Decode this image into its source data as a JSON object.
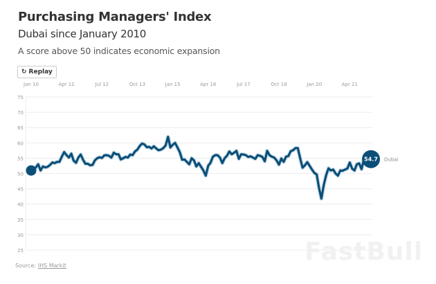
{
  "header": {
    "title": "Purchasing Managers' Index",
    "subtitle": "Dubai since January 2010",
    "description": "A score above 50 indicates economic expansion"
  },
  "controls": {
    "replay_label": "Replay",
    "replay_icon": "replay-icon"
  },
  "source": {
    "label": "Source:",
    "link": "IHS Markit"
  },
  "watermark": "FastBull",
  "chart_data": {
    "type": "line",
    "title": "Purchasing Managers' Index",
    "subtitle": "Dubai since January 2010",
    "x_start": "Jan 2010",
    "x_frequency": "monthly",
    "xticks": [
      {
        "label": "Jan 10",
        "month": 0
      },
      {
        "label": "Apr 11",
        "month": 15
      },
      {
        "label": "Jul 12",
        "month": 30
      },
      {
        "label": "Oct 13",
        "month": 45
      },
      {
        "label": "Jan 15",
        "month": 60
      },
      {
        "label": "Apr 16",
        "month": 75
      },
      {
        "label": "Jul 17",
        "month": 90
      },
      {
        "label": "Oct 18",
        "month": 105
      },
      {
        "label": "Jan 20",
        "month": 120
      },
      {
        "label": "Apr 21",
        "month": 135
      }
    ],
    "ylim": [
      25,
      75
    ],
    "yticks": [
      75,
      70,
      65,
      60,
      55,
      50,
      45,
      40,
      35,
      30,
      25
    ],
    "grid": true,
    "color": "#0b4f78",
    "series": [
      {
        "name": "Dubai",
        "last_label": "54.7",
        "values": [
          51,
          51.5,
          52,
          53,
          51,
          52.3,
          52,
          52.2,
          52.8,
          53.6,
          53.4,
          53.8,
          53.8,
          55.5,
          57,
          56,
          55.2,
          56.5,
          54.2,
          53.5,
          55.2,
          56.2,
          54.5,
          53.2,
          53.2,
          52.7,
          52.8,
          54.3,
          55,
          55.3,
          55.1,
          55.9,
          56,
          55.8,
          55.2,
          56.8,
          56.3,
          56.3,
          54.6,
          55,
          55.4,
          55.2,
          56.2,
          56,
          57.2,
          57.8,
          59,
          59.8,
          59.5,
          58.6,
          58.7,
          58.2,
          58.9,
          58.2,
          57.6,
          57.8,
          58.3,
          59.2,
          62,
          58.5,
          59.4,
          60,
          58.5,
          57,
          54.5,
          54.6,
          53.8,
          53,
          55,
          54.3,
          52.3,
          53.4,
          52.2,
          51,
          49.3,
          52.5,
          53.5,
          55.5,
          56,
          56,
          55.2,
          53.4,
          55,
          55.8,
          57.2,
          56.3,
          56.8,
          57.4,
          54.8,
          56.3,
          56.2,
          56,
          55.4,
          55.6,
          55.2,
          54.8,
          56,
          55.8,
          55.4,
          54,
          57.4,
          56,
          55.5,
          55.2,
          54.3,
          52.9,
          54.9,
          53.8,
          55.5,
          55.7,
          57.3,
          57.6,
          58.3,
          58.3,
          55,
          51.9,
          52.7,
          53.7,
          52.5,
          51.3,
          50.2,
          49.7,
          45.2,
          41.8,
          46.2,
          49.5,
          51.7,
          51,
          51.3,
          50,
          49.3,
          51,
          50.9,
          51.3,
          51.6,
          53.6,
          51.6,
          51,
          53,
          53.3,
          51.4,
          54.6,
          54.8,
          55.4,
          54.7
        ]
      }
    ]
  }
}
